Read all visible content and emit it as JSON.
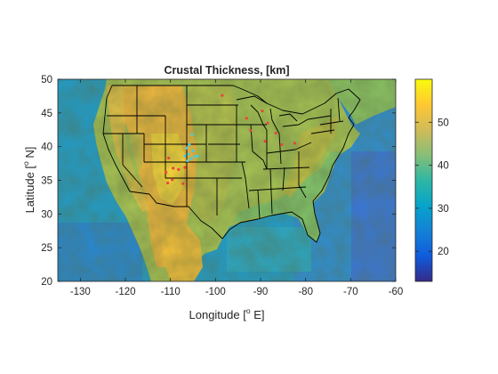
{
  "map": {
    "title": "Crustal Thickness, [km]",
    "xlabel": {
      "prefix": "Longitude [",
      "sup": "o",
      "suffix": " E]"
    },
    "ylabel": {
      "prefix": "Latitude [",
      "sup": "o",
      "suffix": " N]"
    },
    "xlim": [
      -135,
      -60
    ],
    "ylim": [
      20,
      50
    ],
    "xticks": [
      "-130",
      "-120",
      "-110",
      "-100",
      "-90",
      "-80",
      "-70",
      "-60"
    ],
    "yticks": [
      "20",
      "25",
      "30",
      "35",
      "40",
      "45",
      "50"
    ],
    "colormap": "parula",
    "colorbar": {
      "range": [
        13,
        60
      ],
      "ticks": [
        "20",
        "30",
        "40",
        "50"
      ],
      "colors": [
        "#352a87",
        "#0f5cdd",
        "#1481d6",
        "#06a4ca",
        "#2eb7a4",
        "#87bf77",
        "#d1bb59",
        "#fec832",
        "#f9fb0e"
      ]
    },
    "colors": {
      "ocean_pacific": "#1f9dce",
      "ocean_atlantic": "#2d8fd8",
      "gulf": "#2aa7c6",
      "land_low": "#7ec66f",
      "land_mid": "#a8c454",
      "land_high": "#f1b83e",
      "border": "#000000"
    },
    "stations": [
      {
        "lon": -105.8,
        "lat": 40.3,
        "color": "#3fd0e0"
      },
      {
        "lon": -106.4,
        "lat": 39.8,
        "color": "#3fd0e0"
      },
      {
        "lon": -105.0,
        "lat": 39.4,
        "color": "#3fd0e0"
      },
      {
        "lon": -106.0,
        "lat": 38.9,
        "color": "#3fd0e0"
      },
      {
        "lon": -104.6,
        "lat": 38.5,
        "color": "#3fd0e0"
      },
      {
        "lon": -105.4,
        "lat": 38.2,
        "color": "#3fd0e0"
      },
      {
        "lon": -106.8,
        "lat": 38.6,
        "color": "#3fd0e0"
      },
      {
        "lon": -104.0,
        "lat": 38.6,
        "color": "#3fd0e0"
      },
      {
        "lon": -105.2,
        "lat": 41.8,
        "color": "#3fd0e0"
      },
      {
        "lon": -106.2,
        "lat": 37.9,
        "color": "#3fd0e0"
      },
      {
        "lon": -98.5,
        "lat": 47.6,
        "color": "#e8463c"
      },
      {
        "lon": -93.1,
        "lat": 44.2,
        "color": "#e8463c"
      },
      {
        "lon": -89.6,
        "lat": 45.3,
        "color": "#e8463c"
      },
      {
        "lon": -88.4,
        "lat": 43.5,
        "color": "#e8463c"
      },
      {
        "lon": -92.2,
        "lat": 42.4,
        "color": "#e8463c"
      },
      {
        "lon": -89.0,
        "lat": 40.8,
        "color": "#e8463c"
      },
      {
        "lon": -85.3,
        "lat": 40.3,
        "color": "#e8463c"
      },
      {
        "lon": -86.6,
        "lat": 42.0,
        "color": "#e8463c"
      },
      {
        "lon": -82.4,
        "lat": 40.5,
        "color": "#e8463c"
      },
      {
        "lon": -110.4,
        "lat": 38.3,
        "color": "#e8463c"
      },
      {
        "lon": -109.4,
        "lat": 36.8,
        "color": "#e8463c"
      },
      {
        "lon": -111.0,
        "lat": 36.2,
        "color": "#e8463c"
      },
      {
        "lon": -108.2,
        "lat": 36.6,
        "color": "#e8463c"
      },
      {
        "lon": -109.6,
        "lat": 35.1,
        "color": "#e8463c"
      },
      {
        "lon": -106.8,
        "lat": 36.9,
        "color": "#e8463c"
      },
      {
        "lon": -107.2,
        "lat": 34.5,
        "color": "#e8463c"
      },
      {
        "lon": -110.6,
        "lat": 34.6,
        "color": "#e8463c"
      }
    ]
  }
}
